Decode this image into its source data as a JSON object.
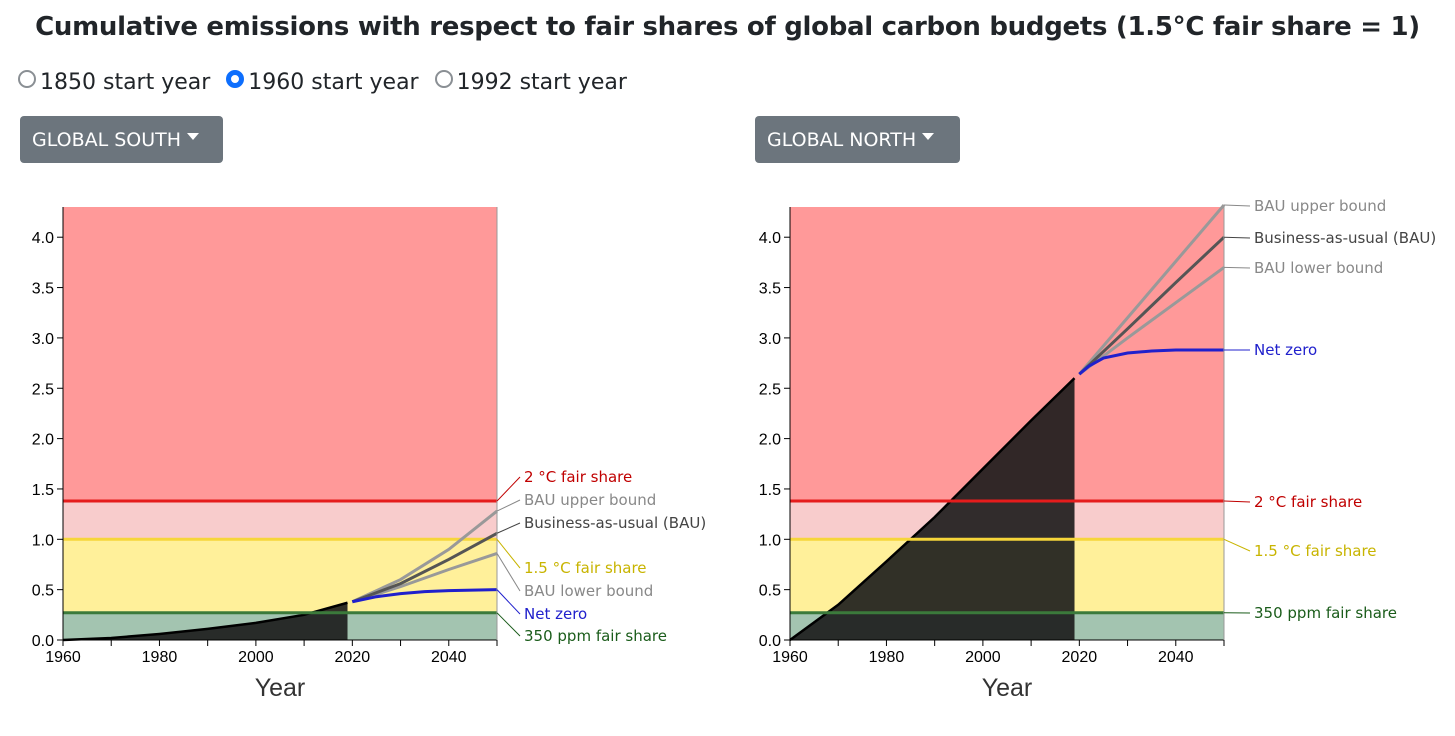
{
  "title": "Cumulative emissions with respect to fair shares of global carbon budgets (1.5°C fair share = 1)",
  "start_year_options": [
    {
      "label": "1850 start year",
      "checked": false
    },
    {
      "label": "1960 start year",
      "checked": true
    },
    {
      "label": "1992 start year",
      "checked": false
    }
  ],
  "dropdowns": {
    "south": "GLOBAL SOUTH",
    "north": "GLOBAL NORTH"
  },
  "colors": {
    "red_zone": "#ff9999",
    "pink_zone": "#f8cccc",
    "yellow_zone": "#fff09a",
    "green_zone": "#a3c4b0",
    "two_deg_line": "#e51c1c",
    "one_five_line": "#f6d63a",
    "ppm_line": "#3b7a3b",
    "historical_fill": "#1b1b1b",
    "net_zero": "#2020cc",
    "bau": "#555555",
    "bau_bound": "#999999"
  },
  "chart_data": [
    {
      "type": "area",
      "panel": "south",
      "xlabel": "Year",
      "xlim": [
        1960,
        2050
      ],
      "ylim": [
        0,
        4.3
      ],
      "xticks": [
        1960,
        1980,
        2000,
        2020,
        2040
      ],
      "yticks": [
        "0.0",
        "0.5",
        "1.0",
        "1.5",
        "2.0",
        "2.5",
        "3.0",
        "3.5",
        "4.0"
      ],
      "thresholds": {
        "two_deg": 1.38,
        "one_five": 1.0,
        "ppm350": 0.27
      },
      "historical": {
        "x": [
          1960,
          1970,
          1980,
          1990,
          2000,
          2010,
          2019
        ],
        "y": [
          0.0,
          0.02,
          0.06,
          0.11,
          0.17,
          0.25,
          0.37
        ]
      },
      "projections": {
        "bau_upper": {
          "x": [
            2020,
            2030,
            2040,
            2050
          ],
          "y": [
            0.38,
            0.6,
            0.9,
            1.28
          ]
        },
        "bau": {
          "x": [
            2020,
            2030,
            2040,
            2050
          ],
          "y": [
            0.38,
            0.56,
            0.8,
            1.06
          ]
        },
        "bau_lower": {
          "x": [
            2020,
            2030,
            2040,
            2050
          ],
          "y": [
            0.38,
            0.53,
            0.7,
            0.86
          ]
        },
        "net_zero": {
          "x": [
            2020,
            2025,
            2030,
            2035,
            2040,
            2050
          ],
          "y": [
            0.38,
            0.43,
            0.46,
            0.48,
            0.49,
            0.5
          ]
        }
      },
      "labels": {
        "two_deg": "2 °C fair share",
        "bau_upper": "BAU upper bound",
        "bau": "Business-as-usual (BAU)",
        "one_five": "1.5 °C fair share",
        "bau_lower": "BAU lower bound",
        "net_zero": "Net zero",
        "ppm350": "350 ppm fair share"
      }
    },
    {
      "type": "area",
      "panel": "north",
      "xlabel": "Year",
      "xlim": [
        1960,
        2050
      ],
      "ylim": [
        0,
        4.3
      ],
      "xticks": [
        1960,
        1980,
        2000,
        2020,
        2040
      ],
      "yticks": [
        "0.0",
        "0.5",
        "1.0",
        "1.5",
        "2.0",
        "2.5",
        "3.0",
        "3.5",
        "4.0"
      ],
      "thresholds": {
        "two_deg": 1.38,
        "one_five": 1.0,
        "ppm350": 0.27
      },
      "historical": {
        "x": [
          1960,
          1970,
          1980,
          1990,
          2000,
          2010,
          2019
        ],
        "y": [
          0.0,
          0.35,
          0.78,
          1.22,
          1.7,
          2.18,
          2.6
        ]
      },
      "projections": {
        "bau_upper": {
          "x": [
            2020,
            2030,
            2040,
            2050
          ],
          "y": [
            2.64,
            3.2,
            3.76,
            4.32
          ]
        },
        "bau": {
          "x": [
            2020,
            2030,
            2040,
            2050
          ],
          "y": [
            2.64,
            3.09,
            3.55,
            4.0
          ]
        },
        "bau_lower": {
          "x": [
            2020,
            2030,
            2040,
            2050
          ],
          "y": [
            2.64,
            3.0,
            3.35,
            3.7
          ]
        },
        "net_zero": {
          "x": [
            2020,
            2022,
            2025,
            2030,
            2035,
            2040,
            2050
          ],
          "y": [
            2.64,
            2.72,
            2.8,
            2.85,
            2.87,
            2.88,
            2.88
          ]
        }
      },
      "labels": {
        "bau_upper": "BAU upper bound",
        "bau": "Business-as-usual (BAU)",
        "bau_lower": "BAU lower bound",
        "net_zero": "Net zero",
        "two_deg": "2 °C fair share",
        "one_five": "1.5 °C fair share",
        "ppm350": "350 ppm fair share"
      }
    }
  ]
}
